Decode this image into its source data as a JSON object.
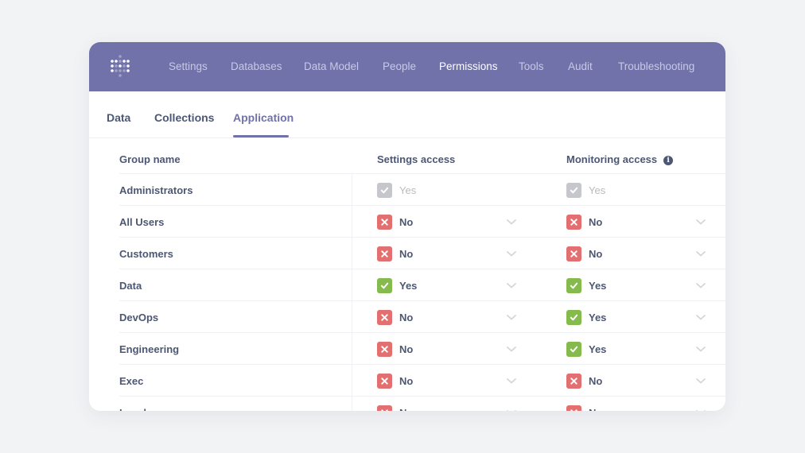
{
  "navbar": {
    "logo": "metabase-logo-icon",
    "background": "#7172a9",
    "items": [
      {
        "label": "Settings",
        "active": false
      },
      {
        "label": "Databases",
        "active": false
      },
      {
        "label": "Data Model",
        "active": false
      },
      {
        "label": "People",
        "active": false
      },
      {
        "label": "Permissions",
        "active": true
      },
      {
        "label": "Tools",
        "active": false
      },
      {
        "label": "Audit",
        "active": false
      },
      {
        "label": "Troubleshooting",
        "active": false
      }
    ]
  },
  "tabs": [
    {
      "label": "Data",
      "active": false
    },
    {
      "label": "Collections",
      "active": false
    },
    {
      "label": "Application",
      "active": true
    }
  ],
  "table": {
    "headers": {
      "group": "Group name",
      "settings": "Settings access",
      "monitoring": "Monitoring access",
      "monitoring_info_icon": "info-icon"
    },
    "rows": [
      {
        "name": "Administrators",
        "settings": "Yes",
        "monitoring": "Yes",
        "locked": true
      },
      {
        "name": "All Users",
        "settings": "No",
        "monitoring": "No",
        "locked": false
      },
      {
        "name": "Customers",
        "settings": "No",
        "monitoring": "No",
        "locked": false
      },
      {
        "name": "Data",
        "settings": "Yes",
        "monitoring": "Yes",
        "locked": false
      },
      {
        "name": "DevOps",
        "settings": "No",
        "monitoring": "Yes",
        "locked": false
      },
      {
        "name": "Engineering",
        "settings": "No",
        "monitoring": "Yes",
        "locked": false
      },
      {
        "name": "Exec",
        "settings": "No",
        "monitoring": "No",
        "locked": false
      },
      {
        "name": "Legal",
        "settings": "No",
        "monitoring": "No",
        "locked": false
      }
    ]
  },
  "colors": {
    "accent": "#7172a9",
    "yes": "#84bb4c",
    "no": "#e27070",
    "locked": "#c5c7cc",
    "text": "#4c5773"
  }
}
